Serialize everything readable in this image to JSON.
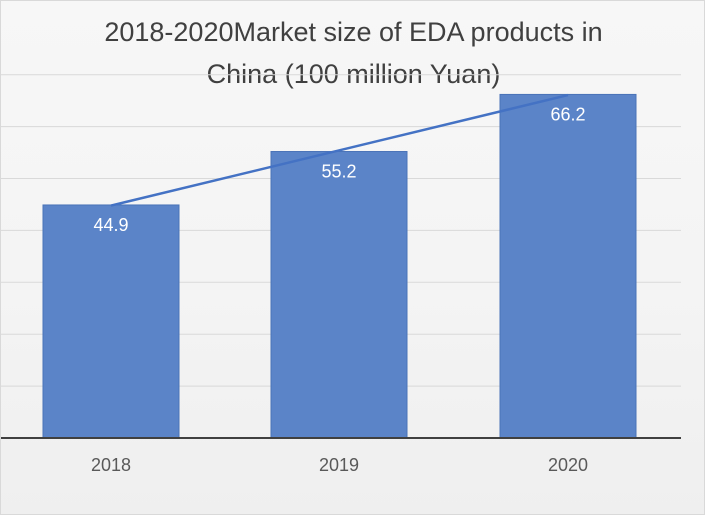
{
  "chart_data": {
    "type": "bar",
    "title": "2018-2020Market size of EDA products in China (100 million Yuan)",
    "title_lines": [
      "2018-2020Market size of EDA products in",
      "China (100 million Yuan)"
    ],
    "categories": [
      "2018",
      "2019",
      "2020"
    ],
    "values": [
      44.9,
      55.2,
      66.2
    ],
    "data_labels": [
      "44.9",
      "55.2",
      "66.2"
    ],
    "trend_line": true,
    "xlabel": "",
    "ylabel": "",
    "ylim": [
      0,
      70
    ],
    "grid": true,
    "legend": "none",
    "colors": {
      "bar": "#5b84c8",
      "bar_edge": "#4a73b8",
      "trend": "#4472c4",
      "grid": "#d9d9d9",
      "axis": "#404040"
    }
  }
}
